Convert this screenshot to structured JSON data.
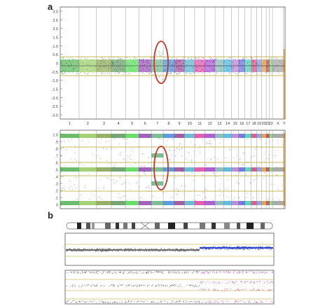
{
  "panels": {
    "a_label": "a",
    "b_label": "b"
  },
  "top_plot": {
    "y_ticks": [
      "3.0",
      "2.5",
      "2.0",
      "1.5",
      "1.0",
      "0.5",
      "0",
      "-0.5",
      "-1.0",
      "-1.5",
      "-2.0",
      "-2.5",
      "-3.0"
    ],
    "y_range": [
      -3.0,
      3.0
    ],
    "chromosome_labels": [
      "1",
      "2",
      "3",
      "4",
      "5",
      "6",
      "7",
      "8",
      "9",
      "10",
      "11",
      "12",
      "13",
      "14",
      "15",
      "16",
      "17",
      "18",
      "19",
      "20",
      "21",
      "22",
      "X",
      "Y"
    ]
  },
  "bottom_plot": {
    "y_ticks": [
      "1.0",
      ".9",
      ".8",
      ".7",
      ".6",
      ".5",
      ".4",
      ".3",
      ".2",
      ".1",
      "0"
    ],
    "y_range": [
      0,
      1
    ]
  },
  "chromosome_colors": [
    "#2fa02f",
    "#7fbf3f",
    "#6a8f2a",
    "#3a7d3a",
    "#2ccf2c",
    "#7a1fa0",
    "#4aa06a",
    "#1a6fd0",
    "#7a1f7a",
    "#2a9fbf",
    "#d01f8f",
    "#8a1fbf",
    "#5fa0a0",
    "#1fa0d0",
    "#9f5fbf",
    "#3f3fd0",
    "#1fbfa0",
    "#bf1f5f",
    "#5f7fd0",
    "#d07f1f",
    "#a01f1f",
    "#5fbf5f",
    "#888888",
    "#c08020"
  ],
  "colors": {
    "accent_line": "#b8a020",
    "highlight_ellipse": "#c0392b",
    "baseline": "#d4b800"
  }
}
